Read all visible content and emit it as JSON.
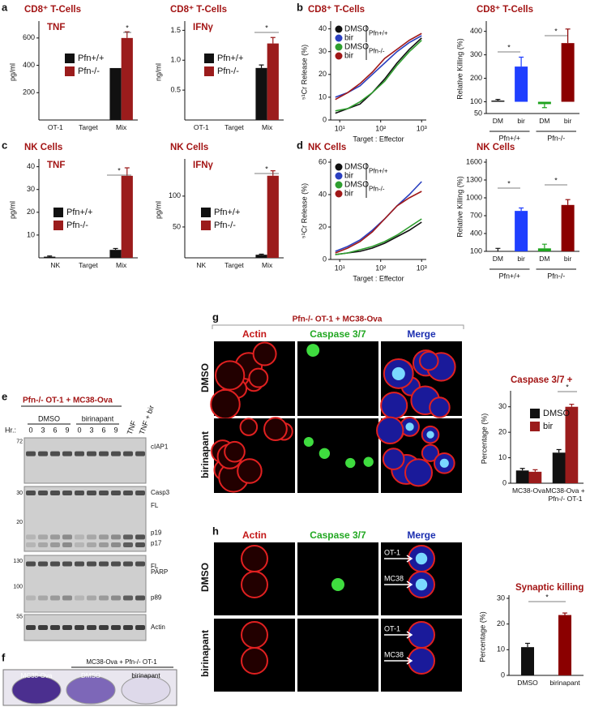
{
  "chart_data": [
    {
      "type": "bar",
      "title": "CD8⁺ T-Cells",
      "subtitle": "TNF",
      "ylabel": "pg/ml",
      "categories": [
        "OT-1",
        "Target",
        "Mix"
      ],
      "series": [
        {
          "name": "Pfn+/+",
          "color": "#111111",
          "values": [
            0,
            0,
            380
          ],
          "errors": [
            0,
            0,
            0
          ]
        },
        {
          "name": "Pfn-/-",
          "color": "#9b1c1c",
          "values": [
            0,
            0,
            600
          ],
          "errors": [
            0,
            0,
            45
          ]
        }
      ],
      "ylim": [
        0,
        700
      ],
      "yticks": [
        200,
        400,
        600
      ],
      "annotations": [
        "*"
      ]
    },
    {
      "type": "bar",
      "title": "CD8⁺ T-Cells",
      "subtitle": "IFNγ",
      "ylabel": "ng/ml",
      "categories": [
        "OT-1",
        "Target",
        "Mix"
      ],
      "series": [
        {
          "name": "Pfn+/+",
          "color": "#111111",
          "values": [
            0,
            0,
            0.87
          ],
          "errors": [
            0,
            0,
            0.05
          ]
        },
        {
          "name": "Pfn-/-",
          "color": "#9b1c1c",
          "values": [
            0,
            0,
            1.28
          ],
          "errors": [
            0,
            0,
            0.1
          ]
        }
      ],
      "ylim": [
        0,
        1.6
      ],
      "yticks": [
        0.5,
        {
          "value": 1,
          "label": "1.0"
        },
        1.5
      ],
      "annotations": [
        "*"
      ]
    },
    {
      "type": "line",
      "title": "CD8⁺ T-Cells",
      "ylabel": "⁵¹Cr Release (%)",
      "xlabel": "Target : Effector",
      "xscale": "log",
      "x": [
        7.8,
        15.6,
        31.3,
        62.5,
        125,
        250,
        500,
        1000
      ],
      "series": [
        {
          "name": "DMSO",
          "color": "#111111",
          "values": [
            3,
            5,
            7,
            12,
            18,
            25,
            31,
            36
          ]
        },
        {
          "name": "bir",
          "color": "#2a3fbf",
          "values": [
            10,
            12,
            15,
            20,
            25,
            30,
            34,
            37
          ]
        },
        {
          "name": "DMSO",
          "color": "#2e9e2e",
          "values": [
            4,
            5,
            8,
            12,
            17,
            24,
            30,
            35
          ]
        },
        {
          "name": "bir",
          "color": "#a01818",
          "values": [
            9,
            12,
            16,
            21,
            27,
            31,
            35,
            38
          ]
        }
      ],
      "legend_groups": [
        "Pfn+/+",
        "Pfn-/-"
      ],
      "xlim": [
        6,
        1300
      ],
      "xticks": [
        {
          "value": 10,
          "label": "10¹"
        },
        {
          "value": 100,
          "label": "10²"
        },
        {
          "value": 1000,
          "label": "10³"
        }
      ],
      "ylim": [
        0,
        42
      ],
      "yticks": [
        0,
        10,
        20,
        30,
        40
      ]
    },
    {
      "type": "bar",
      "title": "CD8⁺ T-Cells",
      "ylabel": "Relative Killing (%)",
      "categories": [
        "DM",
        "bir",
        "DM",
        "bir"
      ],
      "values": [
        105,
        250,
        90,
        350
      ],
      "errors": [
        5,
        40,
        15,
        60
      ],
      "colors": [
        "#111111",
        "#1f3fff",
        "#1fa31f",
        "#8b0000"
      ],
      "baseline": 100,
      "groups": [
        "Pfn+/+",
        "Pfn-/-"
      ],
      "ylim": [
        50,
        430
      ],
      "yticks": [
        50,
        100,
        200,
        300,
        400
      ],
      "annotations": [
        "*",
        "*"
      ]
    },
    {
      "type": "bar",
      "title": "NK Cells",
      "subtitle": "TNF",
      "ylabel": "pg/ml",
      "categories": [
        "NK",
        "Target",
        "Mix"
      ],
      "series": [
        {
          "name": "Pfn+/+",
          "color": "#111111",
          "values": [
            0.5,
            0,
            3.5
          ],
          "errors": [
            0.3,
            0,
            0.6
          ]
        },
        {
          "name": "Pfn-/-",
          "color": "#9b1c1c",
          "values": [
            0,
            0,
            36
          ],
          "errors": [
            0,
            0,
            3.5
          ]
        }
      ],
      "ylim": [
        0,
        42
      ],
      "yticks": [
        10,
        20,
        30,
        40
      ],
      "annotations": [
        "*"
      ]
    },
    {
      "type": "bar",
      "title": "NK Cells",
      "subtitle": "IFNγ",
      "ylabel": "pg/ml",
      "categories": [
        "NK",
        "Target",
        "Mix"
      ],
      "series": [
        {
          "name": "Pfn+/+",
          "color": "#111111",
          "values": [
            0,
            0,
            5
          ],
          "errors": [
            0,
            0,
            1
          ]
        },
        {
          "name": "Pfn-/-",
          "color": "#9b1c1c",
          "values": [
            0,
            0,
            133
          ],
          "errors": [
            0,
            0,
            8
          ]
        }
      ],
      "ylim": [
        0,
        155
      ],
      "yticks": [
        50,
        100
      ],
      "annotations": [
        "*"
      ]
    },
    {
      "type": "line",
      "title": "NK Cells",
      "ylabel": "⁵¹Cr Release (%)",
      "xlabel": "Target : Effector",
      "xscale": "log",
      "x": [
        7.8,
        15.6,
        31.3,
        62.5,
        125,
        250,
        500,
        1000
      ],
      "series": [
        {
          "name": "DMSO",
          "color": "#111111",
          "values": [
            3,
            4,
            5,
            7,
            10,
            14,
            18,
            23
          ]
        },
        {
          "name": "bir",
          "color": "#2a3fbf",
          "values": [
            5,
            8,
            12,
            18,
            25,
            33,
            40,
            48
          ]
        },
        {
          "name": "DMSO",
          "color": "#2e9e2e",
          "values": [
            3,
            4,
            6,
            8,
            11,
            15,
            20,
            25
          ]
        },
        {
          "name": "bir",
          "color": "#a01818",
          "values": [
            4,
            7,
            11,
            17,
            25,
            33,
            38,
            42
          ]
        }
      ],
      "legend_groups": [
        "Pfn+/+",
        "Pfn-/-"
      ],
      "xlim": [
        6,
        1300
      ],
      "xticks": [
        {
          "value": 10,
          "label": "10¹"
        },
        {
          "value": 100,
          "label": "10²"
        },
        {
          "value": 1000,
          "label": "10³"
        }
      ],
      "ylim": [
        0,
        60
      ],
      "yticks": [
        0,
        20,
        40,
        60
      ]
    },
    {
      "type": "bar",
      "title": "NK Cells",
      "ylabel": "Relative Killing (%)",
      "categories": [
        "DM",
        "bir",
        "DM",
        "bir"
      ],
      "values": [
        100,
        780,
        150,
        880
      ],
      "errors": [
        50,
        50,
        70,
        90
      ],
      "colors": [
        "#111111",
        "#1f3fff",
        "#1fa31f",
        "#8b0000"
      ],
      "baseline": 100,
      "groups": [
        "Pfn+/+",
        "Pfn-/-"
      ],
      "ylim": [
        100,
        1600
      ],
      "yticks": [
        100,
        400,
        700,
        1000,
        1300,
        1600
      ],
      "annotations": [
        "*",
        "*"
      ]
    },
    {
      "type": "bar",
      "title": "Caspase 3/7 +",
      "ylabel": "Percentage (%)",
      "categories": [
        "MC38-Ova",
        "MC38-Ova + Pfn-/- OT-1"
      ],
      "series": [
        {
          "name": "DMSO",
          "color": "#111111",
          "values": [
            5,
            12
          ],
          "errors": [
            0.8,
            1.2
          ]
        },
        {
          "name": "bir",
          "color": "#9b1c1c",
          "values": [
            4.5,
            30
          ],
          "errors": [
            0.8,
            1
          ]
        }
      ],
      "ylim": [
        0,
        35
      ],
      "yticks": [
        0,
        10,
        20,
        30
      ],
      "annotations": [
        "*"
      ]
    },
    {
      "type": "bar",
      "title": "Synaptic killing",
      "ylabel": "Percentage (%)",
      "categories": [
        "DMSO",
        "birinapant"
      ],
      "values": [
        11,
        23.5
      ],
      "errors": [
        1.5,
        0.8
      ],
      "colors": [
        "#111111",
        "#8b0000"
      ],
      "ylim": [
        0,
        30
      ],
      "yticks": [
        0,
        10,
        20,
        30
      ],
      "annotations": [
        "*"
      ]
    }
  ],
  "figure": {
    "letters": [
      "a",
      "b",
      "c",
      "d",
      "e",
      "f",
      "g",
      "h"
    ],
    "e": {
      "title": "Pfn-/- OT-1 + MC38-Ova",
      "hr": "Hr.:",
      "groups": [
        "DMSO",
        "birinapant"
      ],
      "lanes": [
        "0",
        "3",
        "6",
        "9",
        "0",
        "3",
        "6",
        "9"
      ],
      "extra_lanes": [
        "TNF",
        "TNF + bir"
      ],
      "blots": [
        {
          "markers": [
            "72"
          ],
          "labels": [
            "cIAP1"
          ]
        },
        {
          "markers": [
            "30",
            "20"
          ],
          "labels": [
            "FL",
            "Casp3",
            "p19",
            "p17"
          ]
        },
        {
          "markers": [
            "130",
            "100"
          ],
          "labels": [
            "FL",
            "PARP",
            "p89"
          ]
        },
        {
          "markers": [
            "55"
          ],
          "labels": [
            "Actin"
          ]
        }
      ]
    },
    "f": {
      "header": "MC38-Ova + Pfn-/- OT-1",
      "wells": [
        "MC38-Ova",
        "DMSO",
        "birinapant"
      ]
    },
    "g": {
      "header": "Pfn-/- OT-1 + MC38-Ova",
      "columns": [
        "Actin",
        "Caspase 3/7",
        "Merge"
      ],
      "rows": [
        "DMSO",
        "birinapant"
      ]
    },
    "h": {
      "columns": [
        "Actin",
        "Caspase 3/7",
        "Merge"
      ],
      "rows": [
        "DMSO",
        "birinapant"
      ],
      "arrows": [
        "OT-1",
        "MC38",
        "OT-1",
        "MC38"
      ]
    }
  }
}
